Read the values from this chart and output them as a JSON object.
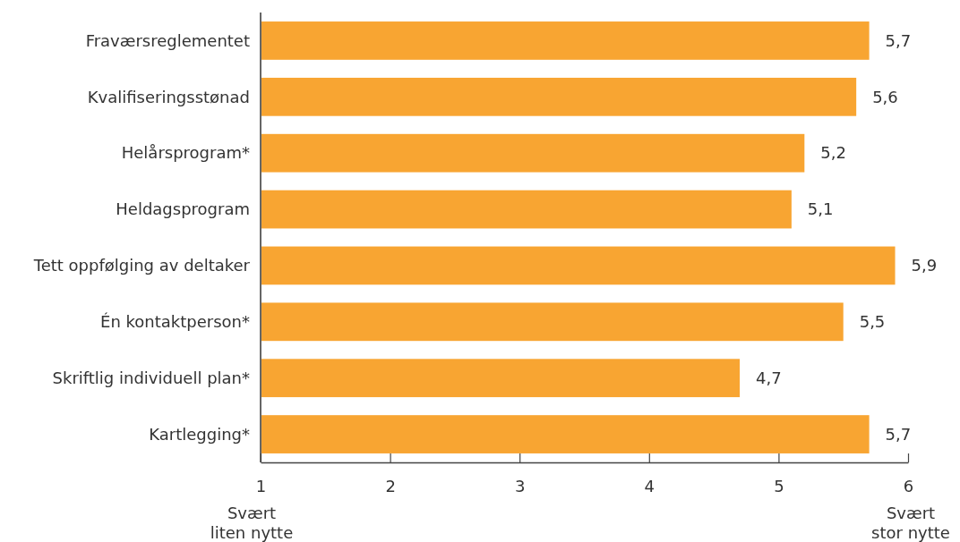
{
  "chart_data": {
    "type": "bar",
    "orientation": "horizontal",
    "categories": [
      "Fraværsreglementet",
      "Kvalifiseringsstønad",
      "Helårsprogram*",
      "Heldagsprogram",
      "Tett oppfølging av deltaker",
      "Én kontaktperson*",
      "Skriftlig individuell plan*",
      "Kartlegging*"
    ],
    "values": [
      5.7,
      5.6,
      5.2,
      5.1,
      5.9,
      5.5,
      4.7,
      5.7
    ],
    "value_labels": [
      "5,7",
      "5,6",
      "5,2",
      "5,1",
      "5,9",
      "5,5",
      "4,7",
      "5,7"
    ],
    "color": "#f8a532",
    "xlim": [
      1,
      6
    ],
    "xticks": [
      1,
      2,
      3,
      4,
      5,
      6
    ],
    "annotations": [
      "Svært\nliten nytte",
      "Svært\nstor nytte"
    ]
  }
}
